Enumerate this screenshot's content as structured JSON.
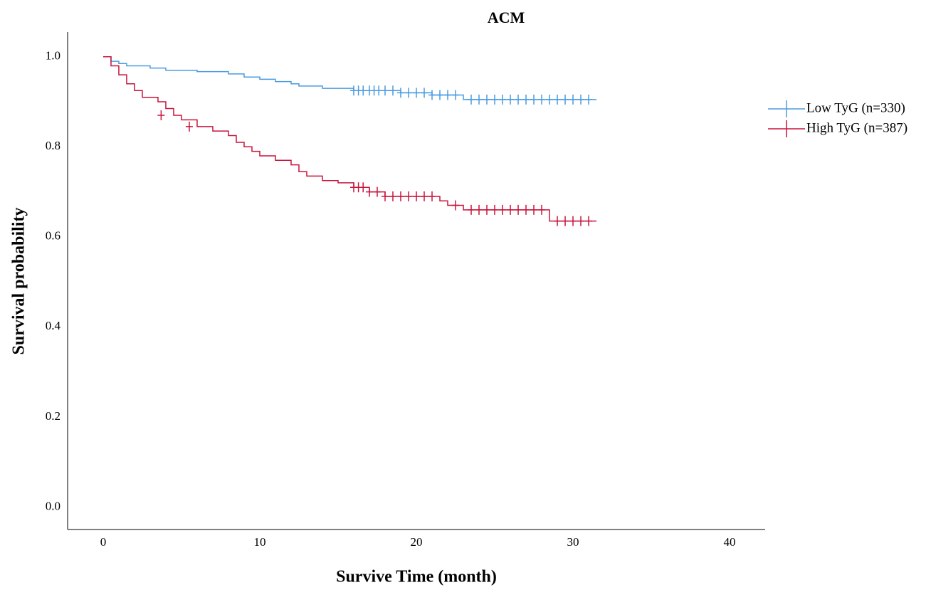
{
  "chart_data": {
    "type": "km",
    "title": "ACM",
    "x_label": "Survive Time (month)",
    "y_label": "Survival probability",
    "xlim": [
      -2.27,
      42.27
    ],
    "ylim": [
      -0.05,
      1.055
    ],
    "xticks": [
      0,
      10,
      20,
      30,
      40
    ],
    "yticks": [
      {
        "value": 0,
        "label": "0.0"
      },
      {
        "value": 0.2,
        "label": "0.2"
      },
      {
        "value": 0.4,
        "label": "0.4"
      },
      {
        "value": 0.6,
        "label": "0.6"
      },
      {
        "value": 0.8,
        "label": "0.8"
      },
      {
        "value": 1,
        "label": "1.0"
      }
    ],
    "legend": "right",
    "series": [
      {
        "name": "Low TyG (n=330)",
        "color": "#4a9be0",
        "x": [
          0,
          0.5,
          1,
          1.5,
          3,
          4,
          6,
          8,
          9,
          10,
          11,
          12,
          12.5,
          14,
          16,
          19,
          21,
          23,
          31.5
        ],
        "values": [
          1.0,
          0.99,
          0.985,
          0.98,
          0.975,
          0.97,
          0.967,
          0.962,
          0.955,
          0.95,
          0.945,
          0.94,
          0.935,
          0.93,
          0.925,
          0.92,
          0.915,
          0.905,
          0.905
        ],
        "censored_x": [
          16,
          16.3,
          16.6,
          17,
          17.3,
          17.6,
          18,
          18.5,
          19,
          19.5,
          20,
          20.5,
          21,
          21.5,
          22,
          22.5,
          23.5,
          24,
          24.5,
          25,
          25.5,
          26,
          26.5,
          27,
          27.5,
          28,
          28.5,
          29,
          29.5,
          30,
          30.5,
          31
        ],
        "censored_y": [
          0.925,
          0.925,
          0.925,
          0.925,
          0.925,
          0.925,
          0.925,
          0.925,
          0.92,
          0.92,
          0.92,
          0.92,
          0.915,
          0.915,
          0.915,
          0.915,
          0.905,
          0.905,
          0.905,
          0.905,
          0.905,
          0.905,
          0.905,
          0.905,
          0.905,
          0.905,
          0.905,
          0.905,
          0.905,
          0.905,
          0.905,
          0.905
        ]
      },
      {
        "name": "High TyG (n=387)",
        "color": "#c8143c",
        "x": [
          0,
          0.5,
          1,
          1.5,
          2,
          2.5,
          3.5,
          4,
          4.5,
          5,
          6,
          7,
          8,
          8.5,
          9,
          9.5,
          10,
          11,
          12,
          12.5,
          13,
          14,
          15,
          16,
          17,
          18,
          21.5,
          22,
          23,
          28.5,
          31.5
        ],
        "values": [
          1.0,
          0.98,
          0.96,
          0.94,
          0.925,
          0.91,
          0.9,
          0.885,
          0.87,
          0.86,
          0.845,
          0.835,
          0.825,
          0.81,
          0.8,
          0.79,
          0.78,
          0.77,
          0.76,
          0.745,
          0.735,
          0.725,
          0.72,
          0.71,
          0.7,
          0.69,
          0.68,
          0.67,
          0.66,
          0.635,
          0.635
        ],
        "censored_x": [
          3.7,
          5.5,
          16,
          16.3,
          16.6,
          17,
          17.5,
          18,
          18.5,
          19,
          19.5,
          20,
          20.5,
          21,
          22.5,
          23.5,
          24,
          24.5,
          25,
          25.5,
          26,
          26.5,
          27,
          27.5,
          28,
          29,
          29.5,
          30,
          30.5,
          31
        ],
        "censored_y": [
          0.87,
          0.845,
          0.71,
          0.71,
          0.71,
          0.7,
          0.7,
          0.69,
          0.69,
          0.69,
          0.69,
          0.69,
          0.69,
          0.69,
          0.67,
          0.66,
          0.66,
          0.66,
          0.66,
          0.66,
          0.66,
          0.66,
          0.66,
          0.66,
          0.66,
          0.635,
          0.635,
          0.635,
          0.635,
          0.635
        ]
      }
    ]
  }
}
